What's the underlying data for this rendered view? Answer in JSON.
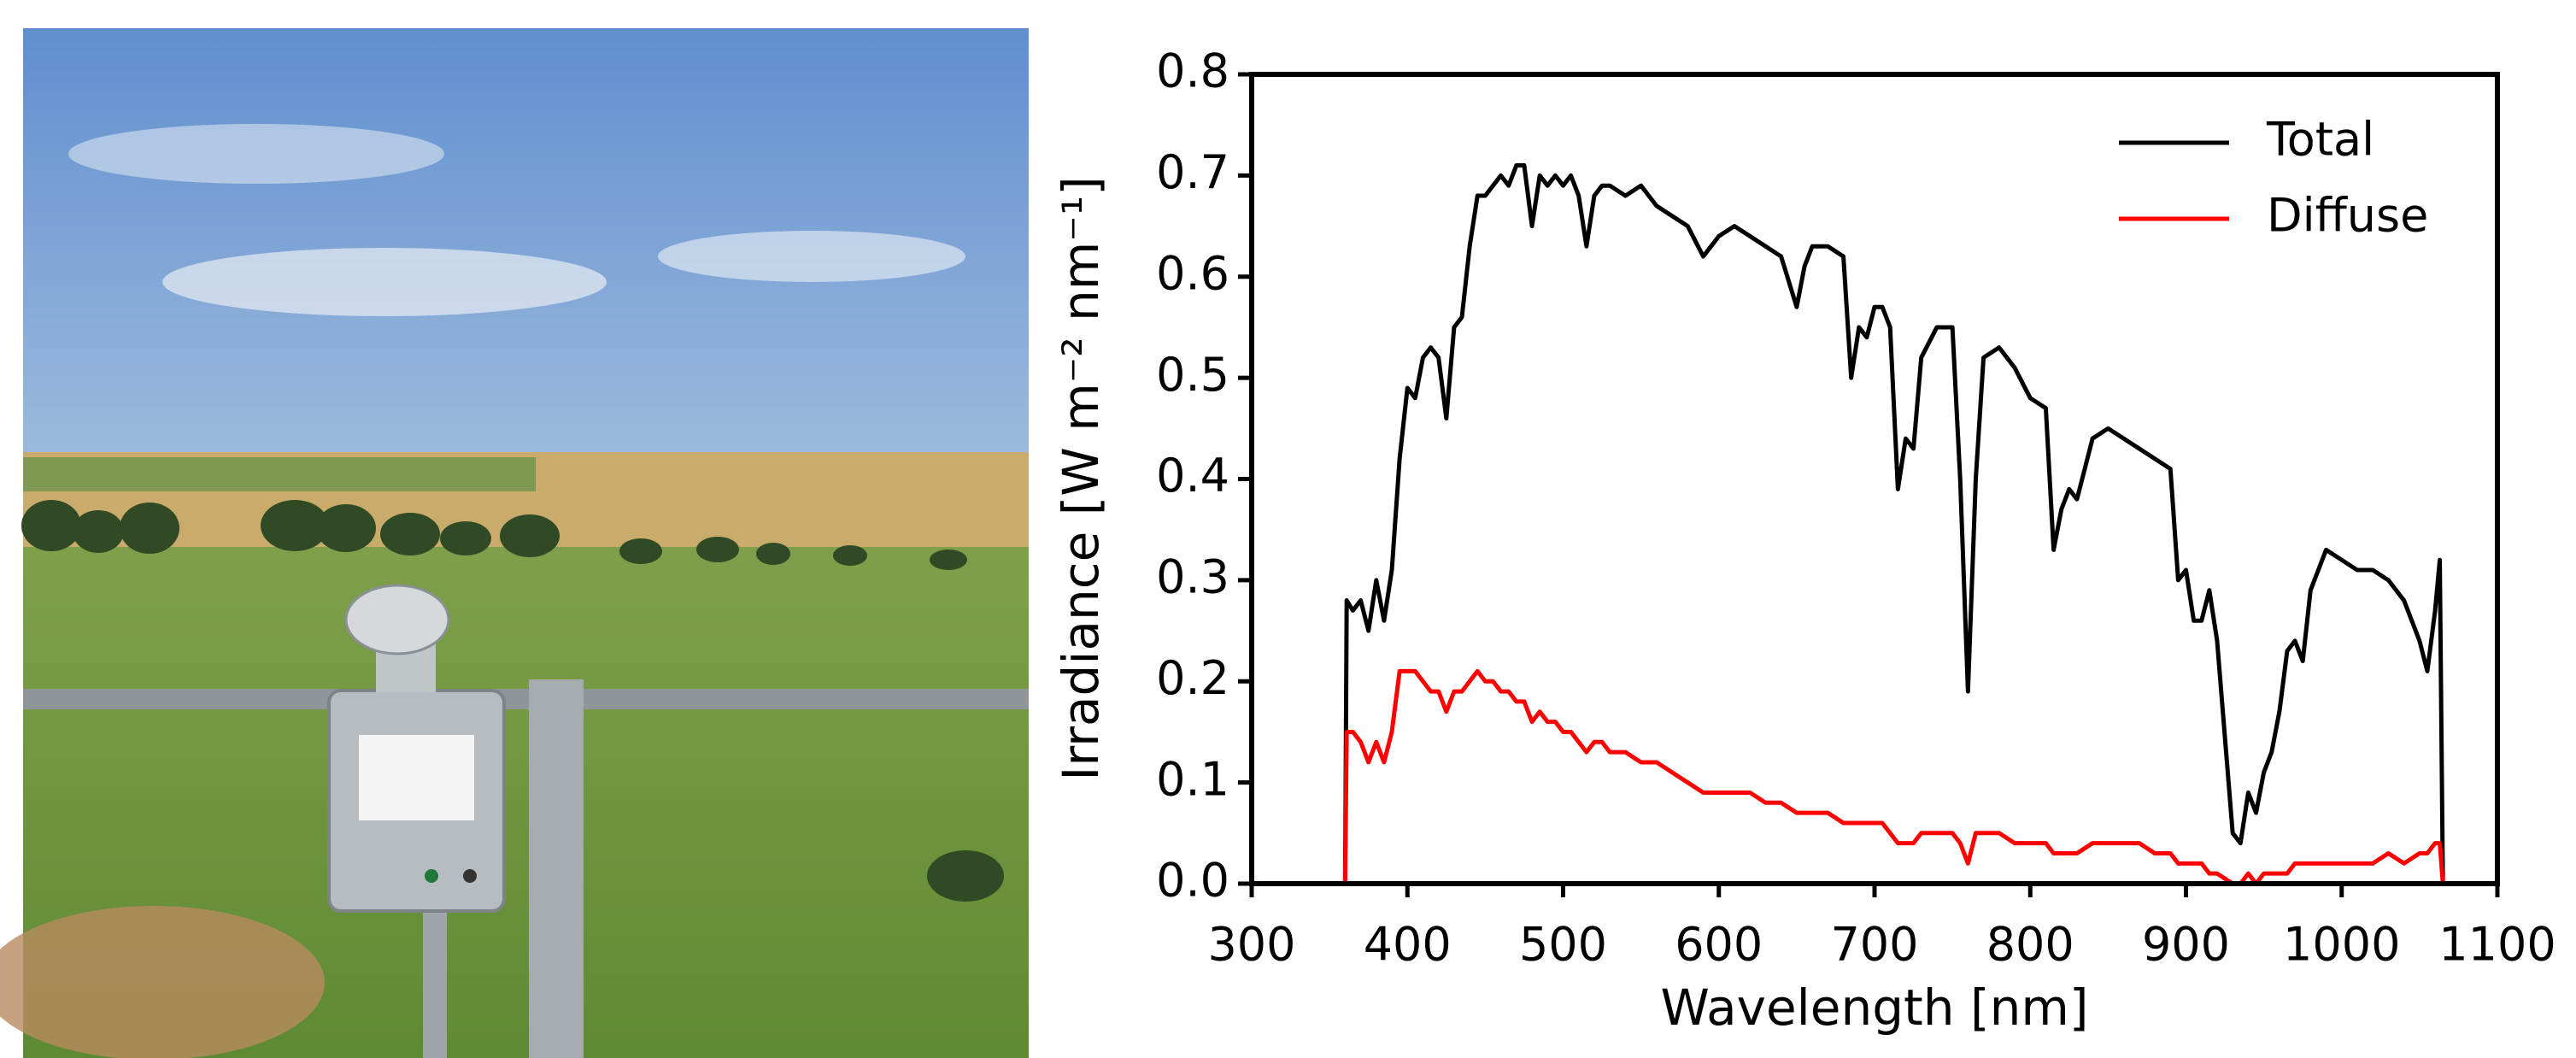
{
  "chart_data": {
    "type": "line",
    "xlabel": "Wavelength [nm]",
    "ylabel": "Irradiance [W m⁻² nm⁻¹]",
    "x": [
      360,
      361,
      365,
      370,
      375,
      380,
      385,
      390,
      395,
      400,
      405,
      410,
      415,
      420,
      425,
      430,
      435,
      440,
      445,
      450,
      455,
      460,
      465,
      470,
      475,
      480,
      485,
      490,
      495,
      500,
      505,
      510,
      515,
      520,
      525,
      530,
      540,
      550,
      560,
      570,
      580,
      590,
      600,
      610,
      620,
      630,
      640,
      650,
      655,
      660,
      670,
      680,
      685,
      690,
      695,
      700,
      705,
      710,
      715,
      720,
      725,
      730,
      740,
      750,
      755,
      760,
      765,
      770,
      780,
      790,
      800,
      810,
      815,
      820,
      825,
      830,
      840,
      850,
      860,
      870,
      880,
      890,
      895,
      900,
      905,
      910,
      915,
      920,
      930,
      935,
      940,
      945,
      950,
      955,
      960,
      965,
      970,
      975,
      980,
      990,
      1000,
      1010,
      1020,
      1030,
      1040,
      1050,
      1055,
      1060,
      1063,
      1065
    ],
    "series": [
      {
        "name": "Total",
        "color": "#000000",
        "values": [
          0,
          0.28,
          0.27,
          0.28,
          0.25,
          0.3,
          0.26,
          0.31,
          0.42,
          0.49,
          0.48,
          0.52,
          0.53,
          0.52,
          0.46,
          0.55,
          0.56,
          0.63,
          0.68,
          0.68,
          0.69,
          0.7,
          0.69,
          0.71,
          0.71,
          0.65,
          0.7,
          0.69,
          0.7,
          0.69,
          0.7,
          0.68,
          0.63,
          0.68,
          0.69,
          0.69,
          0.68,
          0.69,
          0.67,
          0.66,
          0.65,
          0.62,
          0.64,
          0.65,
          0.64,
          0.63,
          0.62,
          0.57,
          0.61,
          0.63,
          0.63,
          0.62,
          0.5,
          0.55,
          0.54,
          0.57,
          0.57,
          0.55,
          0.39,
          0.44,
          0.43,
          0.52,
          0.55,
          0.55,
          0.4,
          0.19,
          0.4,
          0.52,
          0.53,
          0.51,
          0.48,
          0.47,
          0.33,
          0.37,
          0.39,
          0.38,
          0.44,
          0.45,
          0.44,
          0.43,
          0.42,
          0.41,
          0.3,
          0.31,
          0.26,
          0.26,
          0.29,
          0.24,
          0.05,
          0.04,
          0.09,
          0.07,
          0.11,
          0.13,
          0.17,
          0.23,
          0.24,
          0.22,
          0.29,
          0.33,
          0.32,
          0.31,
          0.31,
          0.3,
          0.28,
          0.24,
          0.21,
          0.27,
          0.32,
          0
        ]
      },
      {
        "name": "Diffuse",
        "color": "#ff0000",
        "values": [
          0,
          0.15,
          0.15,
          0.14,
          0.12,
          0.14,
          0.12,
          0.15,
          0.21,
          0.21,
          0.21,
          0.2,
          0.19,
          0.19,
          0.17,
          0.19,
          0.19,
          0.2,
          0.21,
          0.2,
          0.2,
          0.19,
          0.19,
          0.18,
          0.18,
          0.16,
          0.17,
          0.16,
          0.16,
          0.15,
          0.15,
          0.14,
          0.13,
          0.14,
          0.14,
          0.13,
          0.13,
          0.12,
          0.12,
          0.11,
          0.1,
          0.09,
          0.09,
          0.09,
          0.09,
          0.08,
          0.08,
          0.07,
          0.07,
          0.07,
          0.07,
          0.06,
          0.06,
          0.06,
          0.06,
          0.06,
          0.06,
          0.05,
          0.04,
          0.04,
          0.04,
          0.05,
          0.05,
          0.05,
          0.04,
          0.02,
          0.05,
          0.05,
          0.05,
          0.04,
          0.04,
          0.04,
          0.03,
          0.03,
          0.03,
          0.03,
          0.04,
          0.04,
          0.04,
          0.04,
          0.03,
          0.03,
          0.02,
          0.02,
          0.02,
          0.02,
          0.01,
          0.01,
          0,
          0,
          0.01,
          0,
          0.01,
          0.01,
          0.01,
          0.01,
          0.02,
          0.02,
          0.02,
          0.02,
          0.02,
          0.02,
          0.02,
          0.03,
          0.02,
          0.03,
          0.03,
          0.04,
          0.04,
          0
        ]
      }
    ],
    "xlim": [
      300,
      1100
    ],
    "xticks": [
      300,
      400,
      500,
      600,
      700,
      800,
      900,
      1000,
      1100
    ],
    "ylim": [
      0,
      0.8
    ],
    "yticks": [
      {
        "value": 0,
        "label": "0.0"
      },
      0.1,
      0.2,
      0.3,
      0.4,
      0.5,
      0.6,
      0.7,
      0.8
    ],
    "legend": "upper right",
    "grid": false
  }
}
